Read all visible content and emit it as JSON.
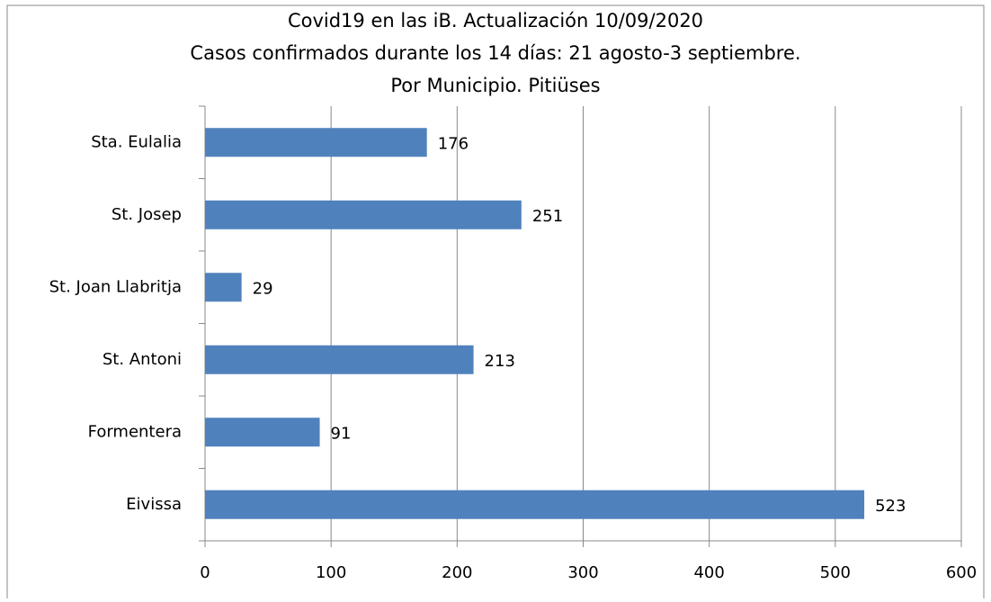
{
  "chart_data": {
    "type": "bar",
    "orientation": "horizontal",
    "title": [
      "Covid19 en las iB. Actualización  10/09/2020",
      "Casos  confirmados durante los 14 días: 21 agosto-3 septiembre.",
      "Por Municipio.  Pitiüses"
    ],
    "categories": [
      "Sta. Eulalia",
      "St. Josep",
      "St. Joan Llabritja",
      "St. Antoni",
      "Formentera",
      "Eivissa"
    ],
    "values": [
      176,
      251,
      29,
      213,
      91,
      523
    ],
    "color": "#4f81bd",
    "xlim": [
      0,
      600
    ],
    "xticks": [
      0,
      100,
      200,
      300,
      400,
      500,
      600
    ],
    "grid": true
  }
}
